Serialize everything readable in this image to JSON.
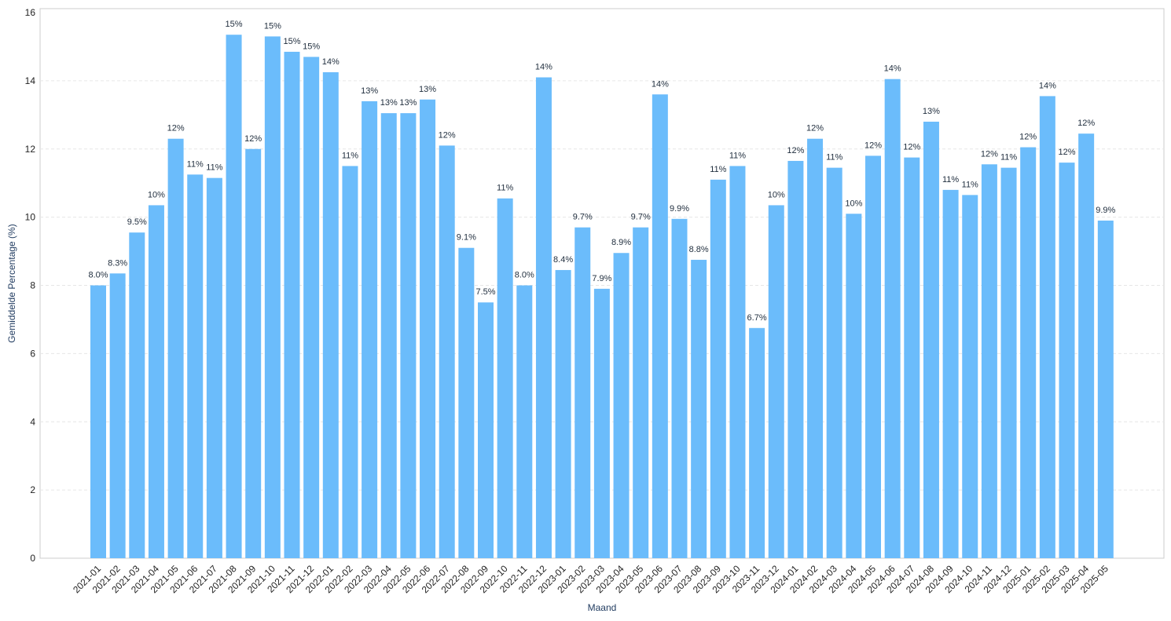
{
  "chart_data": {
    "type": "bar",
    "title": "",
    "xlabel": "Maand",
    "ylabel": "Gemiddelde Percentage (%)",
    "ylim": [
      0,
      16
    ],
    "yticks": [
      0,
      2,
      4,
      6,
      8,
      10,
      12,
      14,
      16
    ],
    "grid": true,
    "legend": "none",
    "bar_color": "#6bbcfb",
    "categories": [
      "2021-01",
      "2021-02",
      "2021-03",
      "2021-04",
      "2021-05",
      "2021-06",
      "2021-07",
      "2021-08",
      "2021-09",
      "2021-10",
      "2021-11",
      "2021-12",
      "2022-01",
      "2022-02",
      "2022-03",
      "2022-04",
      "2022-05",
      "2022-06",
      "2022-07",
      "2022-08",
      "2022-09",
      "2022-10",
      "2022-11",
      "2022-12",
      "2023-01",
      "2023-02",
      "2023-03",
      "2023-04",
      "2023-05",
      "2023-06",
      "2023-07",
      "2023-08",
      "2023-09",
      "2023-10",
      "2023-11",
      "2023-12",
      "2024-01",
      "2024-02",
      "2024-03",
      "2024-04",
      "2024-05",
      "2024-06",
      "2024-07",
      "2024-08",
      "2024-09",
      "2024-10",
      "2024-11",
      "2024-12",
      "2025-01",
      "2025-02",
      "2025-03",
      "2025-04",
      "2025-05"
    ],
    "values": [
      8.0,
      8.35,
      9.55,
      10.35,
      12.3,
      11.25,
      11.15,
      15.35,
      12.0,
      15.3,
      14.85,
      14.7,
      14.25,
      11.5,
      13.4,
      13.05,
      13.05,
      13.45,
      12.1,
      9.1,
      7.5,
      10.55,
      8.0,
      14.1,
      8.45,
      9.7,
      7.9,
      8.95,
      9.7,
      13.6,
      9.95,
      8.75,
      11.1,
      11.5,
      6.75,
      10.35,
      11.65,
      12.3,
      11.45,
      10.1,
      11.8,
      14.05,
      11.75,
      12.8,
      10.8,
      10.65,
      11.55,
      11.45,
      12.05,
      13.55,
      11.6,
      12.45,
      9.9
    ],
    "data_labels": [
      "8.0%",
      "8.3%",
      "9.5%",
      "10%",
      "12%",
      "11%",
      "11%",
      "15%",
      "12%",
      "15%",
      "15%",
      "15%",
      "14%",
      "11%",
      "13%",
      "13%",
      "13%",
      "13%",
      "12%",
      "9.1%",
      "7.5%",
      "11%",
      "8.0%",
      "14%",
      "8.4%",
      "9.7%",
      "7.9%",
      "8.9%",
      "9.7%",
      "14%",
      "9.9%",
      "8.8%",
      "11%",
      "11%",
      "6.7%",
      "10%",
      "12%",
      "12%",
      "11%",
      "10%",
      "12%",
      "14%",
      "12%",
      "13%",
      "11%",
      "11%",
      "12%",
      "11%",
      "12%",
      "14%",
      "12%",
      "12%",
      "9.9%"
    ]
  }
}
